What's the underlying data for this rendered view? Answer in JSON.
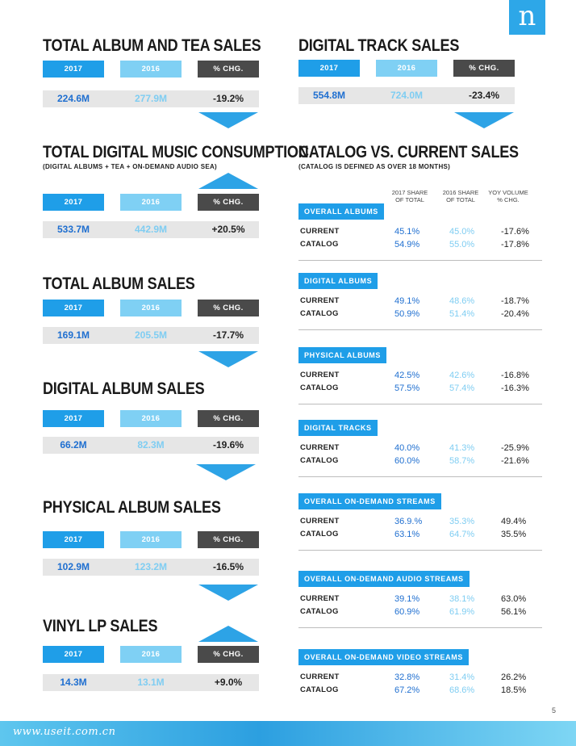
{
  "header": {
    "logo_letter": "n"
  },
  "labels": {
    "y2017": "2017",
    "y2016": "2016",
    "chg": "% CHG."
  },
  "left_sections": [
    {
      "title": "TOTAL ALBUM AND TEA SALES",
      "subtitle": "",
      "v2017": "224.6M",
      "v2016": "277.9M",
      "chg": "-19.2%",
      "trend": "down"
    },
    {
      "title": "TOTAL DIGITAL MUSIC CONSUMPTION",
      "subtitle": "(DIGITAL ALBUMS + TEA + ON-DEMAND AUDIO SEA)",
      "v2017": "533.7M",
      "v2016": "442.9M",
      "chg": "+20.5%",
      "trend": "up"
    },
    {
      "title": "TOTAL ALBUM SALES",
      "subtitle": "",
      "v2017": "169.1M",
      "v2016": "205.5M",
      "chg": "-17.7%",
      "trend": "down"
    },
    {
      "title": "DIGITAL ALBUM SALES",
      "subtitle": "",
      "v2017": "66.2M",
      "v2016": "82.3M",
      "chg": "-19.6%",
      "trend": "down"
    },
    {
      "title": "PHYSICAL ALBUM SALES",
      "subtitle": "",
      "v2017": "102.9M",
      "v2016": "123.2M",
      "chg": "-16.5%",
      "trend": "down"
    },
    {
      "title": "VINYL LP SALES",
      "subtitle": "",
      "v2017": "14.3M",
      "v2016": "13.1M",
      "chg": "+9.0%",
      "trend": "up"
    }
  ],
  "digital_track": {
    "title": "DIGITAL TRACK SALES",
    "v2017": "554.8M",
    "v2016": "724.0M",
    "chg": "-23.4%",
    "trend": "down"
  },
  "catalog": {
    "title": "CATALOG VS. CURRENT SALES",
    "subtitle": "(CATALOG IS DEFINED AS OVER 18 MONTHS)",
    "col_2017": "2017 SHARE OF TOTAL",
    "col_2016": "2016 SHARE OF TOTAL",
    "col_yoy": "YOY VOLUME % CHG.",
    "row_current": "CURRENT",
    "row_catalog": "CATALOG",
    "groups": [
      {
        "label": "OVERALL ALBUMS",
        "current": [
          "45.1%",
          "45.0%",
          "-17.6%"
        ],
        "catalog": [
          "54.9%",
          "55.0%",
          "-17.8%"
        ]
      },
      {
        "label": "DIGITAL ALBUMS",
        "current": [
          "49.1%",
          "48.6%",
          "-18.7%"
        ],
        "catalog": [
          "50.9%",
          "51.4%",
          "-20.4%"
        ]
      },
      {
        "label": "PHYSICAL ALBUMS",
        "current": [
          "42.5%",
          "42.6%",
          "-16.8%"
        ],
        "catalog": [
          "57.5%",
          "57.4%",
          "-16.3%"
        ]
      },
      {
        "label": "DIGITAL TRACKS",
        "current": [
          "40.0%",
          "41.3%",
          "-25.9%"
        ],
        "catalog": [
          "60.0%",
          "58.7%",
          "-21.6%"
        ]
      },
      {
        "label": "OVERALL ON-DEMAND STREAMS",
        "current": [
          "36.9.%",
          "35.3%",
          "49.4%"
        ],
        "catalog": [
          "63.1%",
          "64.7%",
          "35.5%"
        ]
      },
      {
        "label": "OVERALL ON-DEMAND AUDIO STREAMS",
        "current": [
          "39.1%",
          "38.1%",
          "63.0%"
        ],
        "catalog": [
          "60.9%",
          "61.9%",
          "56.1%"
        ]
      },
      {
        "label": "OVERALL ON-DEMAND VIDEO STREAMS",
        "current": [
          "32.8%",
          "31.4%",
          "26.2%"
        ],
        "catalog": [
          "67.2%",
          "68.6%",
          "18.5%"
        ]
      }
    ]
  },
  "footer": {
    "page_number": "5",
    "watermark": "www.useit.com.cn"
  }
}
